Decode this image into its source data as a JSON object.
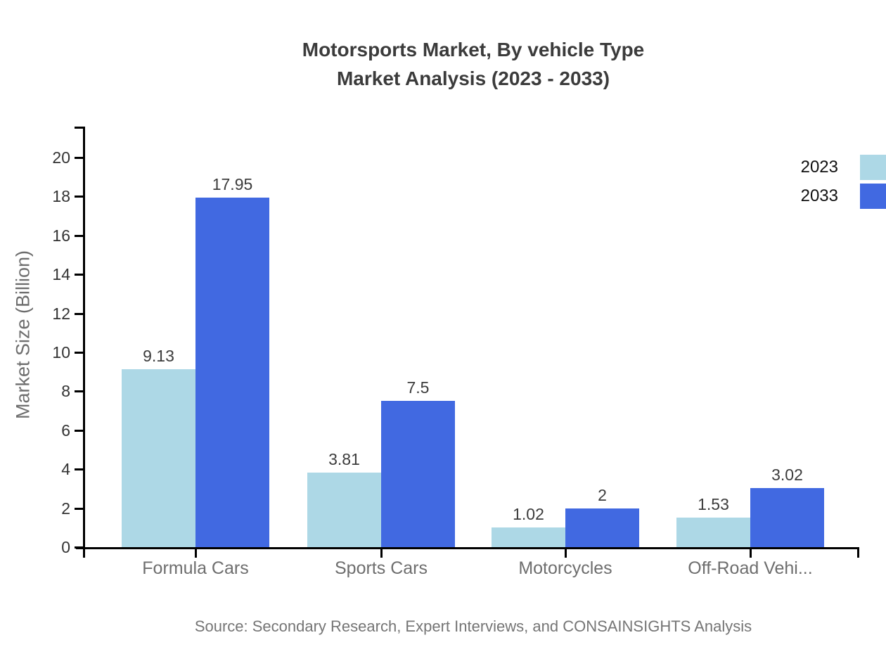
{
  "title": {
    "line1": "Motorsports Market, By vehicle Type",
    "line2": "Market Analysis (2023 - 2033)"
  },
  "source_note": "Source: Secondary Research, Expert Interviews, and CONSAINSIGHTS Analysis",
  "colors": {
    "background": "#ffffff",
    "axis": "#000000",
    "title_text": "#3b3b3b",
    "tick_label_text": "#333333",
    "category_label_text": "#6e6e6e",
    "axis_title_text": "#6e6e6e",
    "value_label_text": "#3c3c3c",
    "legend_text": "#111111",
    "source_text": "#757575",
    "series_2023": "#add8e6",
    "series_2033": "#4169e1"
  },
  "chart_data": {
    "type": "bar",
    "title": "Motorsports Market, By vehicle Type — Market Analysis (2023 - 2033)",
    "categories": [
      "Formula Cars",
      "Sports Cars",
      "Motorcycles",
      "Off-Road Vehi..."
    ],
    "series": [
      {
        "name": "2023",
        "color": "#add8e6",
        "values": [
          9.13,
          3.81,
          1.02,
          1.53
        ],
        "labels": [
          "9.13",
          "3.81",
          "1.02",
          "1.53"
        ]
      },
      {
        "name": "2033",
        "color": "#4169e1",
        "values": [
          17.95,
          7.5,
          2,
          3.02
        ],
        "labels": [
          "17.95",
          "7.5",
          "2",
          "3.02"
        ]
      }
    ],
    "xlabel": "",
    "ylabel": "Market Size (Billion)",
    "yticks": [
      0,
      2,
      4,
      6,
      8,
      10,
      12,
      14,
      16,
      18,
      20
    ],
    "ylim": [
      0,
      21.6
    ],
    "grid": false,
    "legend_position": "top-right",
    "legend_entries": [
      "2023",
      "2033"
    ]
  }
}
